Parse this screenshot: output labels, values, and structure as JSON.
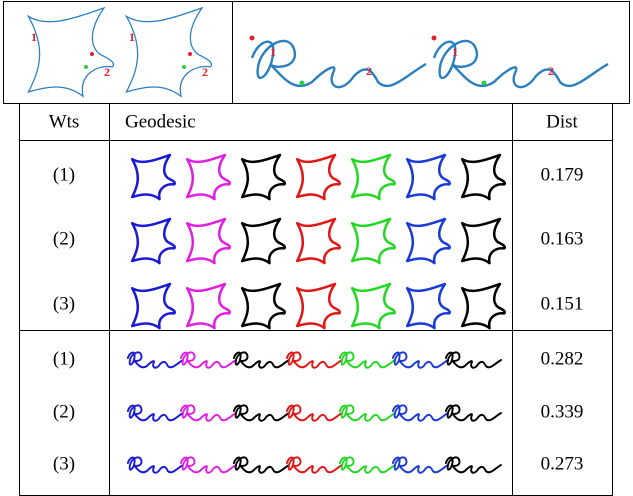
{
  "top_left": {
    "labels": [
      "1",
      "2",
      "1",
      "2"
    ]
  },
  "top_right": {
    "labels": [
      "1",
      "2",
      "1",
      "2"
    ]
  },
  "table": {
    "header": [
      "Wts",
      "Geodesic",
      "Dist"
    ],
    "sections": [
      {
        "rows": [
          [
            "(1)",
            0.179
          ],
          [
            "(2)",
            0.163
          ],
          [
            "(3)",
            0.151
          ]
        ]
      },
      {
        "rows": [
          [
            "(1)",
            0.282
          ],
          [
            "(2)",
            0.339
          ],
          [
            "(3)",
            0.273
          ]
        ]
      }
    ]
  }
}
